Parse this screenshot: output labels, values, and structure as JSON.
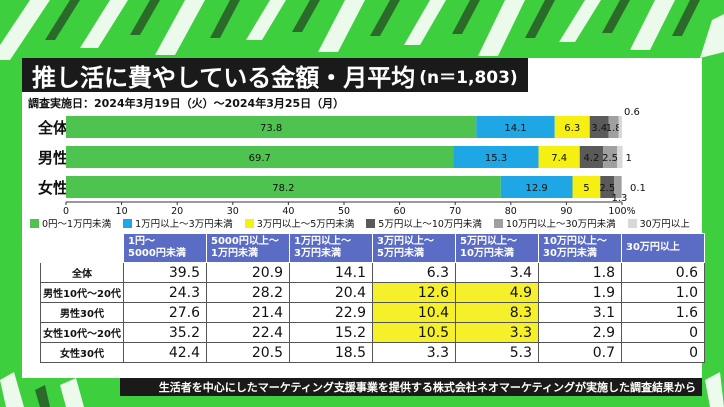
{
  "title": "推し活に費やしている金額・月平均",
  "sample": "(n＝1,803)",
  "survey_period": "調査実施日：2024年3月19日（火）〜2024年3月25日（月）",
  "footer": "生活者を中心にしたマーケティング支援事業を提供する株式会社ネオマーケティングが実施した調査結果から",
  "chart_data": [
    {
      "type": "bar",
      "orientation": "horizontal-stacked",
      "categories": [
        "全体",
        "男性",
        "女性"
      ],
      "x_ticks": [
        "0",
        "10",
        "20",
        "30",
        "40",
        "50",
        "60",
        "70",
        "80",
        "90",
        "100%"
      ],
      "xlim": [
        0,
        100
      ],
      "legend_placement": "bottom",
      "series": [
        {
          "name": "0円〜1万円未満",
          "color": "#4fc34f",
          "values": [
            73.8,
            69.7,
            78.2
          ],
          "labels": [
            "73.8",
            "69.7",
            "78.2"
          ]
        },
        {
          "name": "1万円以上〜3万円未満",
          "color": "#1ea7e4",
          "values": [
            14.1,
            15.3,
            12.9
          ],
          "labels": [
            "14.1",
            "15.3",
            "12.9"
          ]
        },
        {
          "name": "3万円以上〜5万円未満",
          "color": "#f5f012",
          "values": [
            6.3,
            7.4,
            5.0
          ],
          "labels": [
            "6.3",
            "7.4",
            "5"
          ]
        },
        {
          "name": "5万円以上〜10万円未満",
          "color": "#5a5a5a",
          "values": [
            3.4,
            4.2,
            2.5
          ],
          "labels": [
            "3.4",
            "4.2",
            "2.5"
          ]
        },
        {
          "name": "10万円以上〜30万円未満",
          "color": "#a0a0a0",
          "values": [
            1.8,
            2.5,
            1.3
          ],
          "labels": [
            "1.8",
            "2.5",
            "1.3"
          ]
        },
        {
          "name": "30万円以上",
          "color": "#d8d8d8",
          "values": [
            0.6,
            1.0,
            0.1
          ],
          "labels": [
            "0.6",
            "1",
            "0.1"
          ]
        }
      ]
    },
    {
      "type": "table",
      "columns": [
        "",
        "1円〜\n5000円未満",
        "5000円以上〜\n1万円未満",
        "1万円以上〜\n3万円未満",
        "3万円以上〜\n5万円未満",
        "5万円以上〜\n10万円未満",
        "10万円以上〜\n30万円未満",
        "30万円以上"
      ],
      "rows": [
        {
          "label": "全体",
          "values": [
            "39.5",
            "20.9",
            "14.1",
            "6.3",
            "3.4",
            "1.8",
            "0.6"
          ],
          "highlight": []
        },
        {
          "label": "男性10代〜20代",
          "values": [
            "24.3",
            "28.2",
            "20.4",
            "12.6",
            "4.9",
            "1.9",
            "1.0"
          ],
          "highlight": [
            3,
            4
          ]
        },
        {
          "label": "男性30代",
          "values": [
            "27.6",
            "21.4",
            "22.9",
            "10.4",
            "8.3",
            "3.1",
            "1.6"
          ],
          "highlight": [
            3,
            4
          ]
        },
        {
          "label": "女性10代〜20代",
          "values": [
            "35.2",
            "22.4",
            "15.2",
            "10.5",
            "3.3",
            "2.9",
            "0"
          ],
          "highlight": [
            3,
            4
          ]
        },
        {
          "label": "女性30代",
          "values": [
            "42.4",
            "20.5",
            "18.5",
            "3.3",
            "5.3",
            "0.7",
            "0"
          ],
          "highlight": []
        }
      ],
      "highlight_color": "#f5f02a"
    }
  ]
}
